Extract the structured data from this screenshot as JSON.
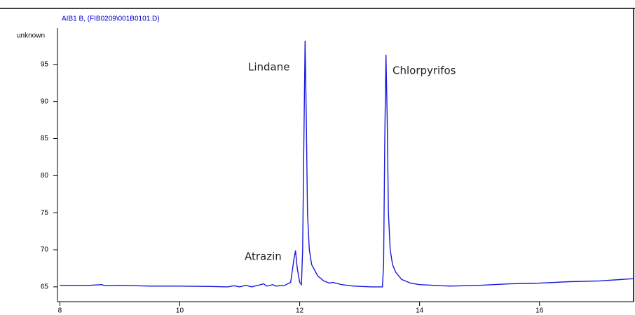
{
  "chart_data": {
    "type": "line",
    "title": "AIB1 B, (FIB0209\\001B0101.D)",
    "y_label": "unknown",
    "annotations": [
      "Lindane",
      "Chlorpyrifos",
      "Atrazin"
    ],
    "xlim": [
      7.96,
      17.57
    ],
    "ylim": [
      63,
      99.9
    ],
    "xticks": [
      8,
      10,
      12,
      14,
      16
    ],
    "yticks": [
      65,
      70,
      75,
      80,
      85,
      90,
      95
    ],
    "series": [
      {
        "color": "#1a1adb",
        "x": [
          8.0,
          8.5,
          8.7,
          8.75,
          9.0,
          9.5,
          10.0,
          10.5,
          10.8,
          10.9,
          11.0,
          11.1,
          11.2,
          11.4,
          11.45,
          11.55,
          11.6,
          11.75,
          11.85,
          11.9,
          11.93,
          11.96,
          12.0,
          12.03,
          12.05,
          12.07,
          12.09,
          12.11,
          12.13,
          12.16,
          12.2,
          12.3,
          12.4,
          12.5,
          12.55,
          12.7,
          12.9,
          13.2,
          13.38,
          13.4,
          13.42,
          13.44,
          13.46,
          13.48,
          13.51,
          13.55,
          13.6,
          13.7,
          13.85,
          14.0,
          14.5,
          15.0,
          15.5,
          16.0,
          16.5,
          17.0,
          17.57
        ],
        "values": [
          65.2,
          65.2,
          65.3,
          65.15,
          65.2,
          65.1,
          65.1,
          65.05,
          65.0,
          65.15,
          65.0,
          65.2,
          65.0,
          65.4,
          65.1,
          65.3,
          65.1,
          65.2,
          65.6,
          68.5,
          69.9,
          67.5,
          65.6,
          65.3,
          70,
          85,
          98.2,
          88,
          75,
          70,
          68,
          66.5,
          65.8,
          65.5,
          65.6,
          65.3,
          65.1,
          65.0,
          65.0,
          68,
          85,
          96.3,
          88,
          75,
          70,
          68,
          67,
          66,
          65.5,
          65.3,
          65.1,
          65.2,
          65.4,
          65.5,
          65.7,
          65.8,
          66.1
        ]
      }
    ]
  }
}
